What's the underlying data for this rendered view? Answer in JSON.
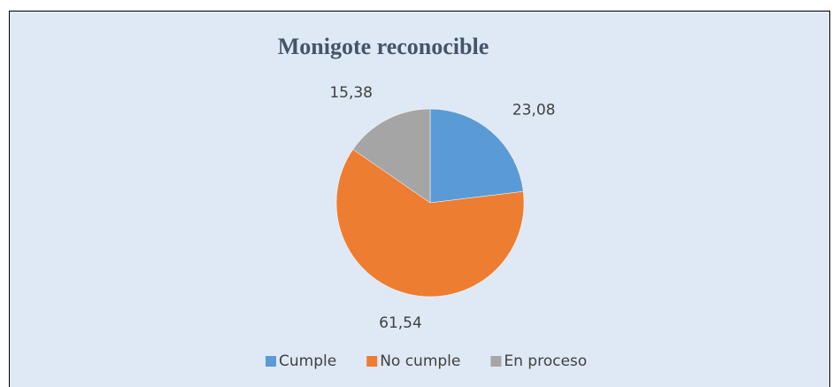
{
  "chart_data": {
    "type": "pie",
    "title": "Monigote reconocible",
    "categories": [
      "Cumple",
      "No cumple",
      "En proceso"
    ],
    "values": [
      23.08,
      61.54,
      15.38
    ],
    "value_labels": [
      "23,08",
      "61,54",
      "15,38"
    ],
    "colors": [
      "#5b9bd5",
      "#ed7d31",
      "#a5a5a5"
    ],
    "legend": "bottom"
  }
}
